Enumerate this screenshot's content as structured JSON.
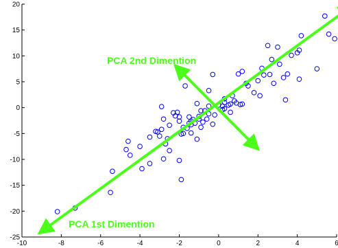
{
  "chart_data": {
    "type": "scatter",
    "title": "",
    "xlabel": "",
    "ylabel": "",
    "xlim": [
      -10,
      6
    ],
    "ylim": [
      -25,
      20
    ],
    "xticks": [
      -10,
      -8,
      -6,
      -4,
      -2,
      0,
      2,
      4,
      6
    ],
    "yticks": [
      -25,
      -20,
      -15,
      -10,
      -5,
      0,
      5,
      10,
      15,
      20
    ],
    "grid": false,
    "marker": "circle-open",
    "series": [
      {
        "name": "",
        "color": "#0000ff",
        "points": [
          [
            -8.2,
            -20.1
          ],
          [
            -7.3,
            -19.4
          ],
          [
            -5.5,
            -16.4
          ],
          [
            -5.4,
            -12.3
          ],
          [
            -3.9,
            -11.8
          ],
          [
            -4.5,
            -9.2
          ],
          [
            -4.7,
            -8.1
          ],
          [
            -4.6,
            -6.5
          ],
          [
            -3.5,
            -5.7
          ],
          [
            -4.0,
            -7.5
          ],
          [
            -3.1,
            -4.7
          ],
          [
            -3.0,
            -5.5
          ],
          [
            -3.2,
            -4.6
          ],
          [
            -2.7,
            -7.0
          ],
          [
            -2.9,
            -4.2
          ],
          [
            -2.5,
            -3.4
          ],
          [
            -2.8,
            -2.2
          ],
          [
            -2.3,
            -1.0
          ],
          [
            -2.2,
            -1.6
          ],
          [
            -1.5,
            -3.0
          ],
          [
            -1.8,
            -3.8
          ],
          [
            -1.2,
            -3.0
          ],
          [
            -1.0,
            -2.2
          ],
          [
            -0.5,
            -1.2
          ],
          [
            -1.6,
            -4.0
          ],
          [
            -1.9,
            -5.1
          ],
          [
            -2.0,
            -2.6
          ],
          [
            -2.0,
            -1.8
          ],
          [
            -2.1,
            -0.9
          ],
          [
            -1.5,
            -1.8
          ],
          [
            -1.4,
            -2.6
          ],
          [
            -1.3,
            -2.3
          ],
          [
            -0.9,
            -3.8
          ],
          [
            -0.8,
            -2.8
          ],
          [
            -0.6,
            -2.2
          ],
          [
            -0.3,
            -3.2
          ],
          [
            -0.2,
            -1.4
          ],
          [
            -1.0,
            -1.7
          ],
          [
            -0.7,
            -0.6
          ],
          [
            -1.4,
            -3.3
          ],
          [
            -1.1,
            -6.1
          ],
          [
            -2.6,
            -6.0
          ],
          [
            -2.9,
            0.2
          ],
          [
            -2.5,
            -8.3
          ],
          [
            -3.5,
            -10.8
          ],
          [
            -2.0,
            -10.2
          ],
          [
            -2.8,
            -9.9
          ],
          [
            -1.4,
            -4.9
          ],
          [
            -1.8,
            -5.0
          ],
          [
            -1.9,
            -13.9
          ],
          [
            -1.7,
            4.2
          ],
          [
            -1.1,
            0.8
          ],
          [
            -0.9,
            -0.6
          ],
          [
            -0.5,
            0.3
          ],
          [
            -0.5,
            3.3
          ],
          [
            -0.3,
            6.4
          ],
          [
            0.0,
            0.5
          ],
          [
            0.2,
            0.3
          ],
          [
            0.3,
            1.7
          ],
          [
            0.3,
            -0.2
          ],
          [
            0.5,
            0.5
          ],
          [
            0.6,
            0.7
          ],
          [
            0.8,
            1.3
          ],
          [
            0.9,
            0.9
          ],
          [
            1.0,
            6.5
          ],
          [
            1.1,
            0.6
          ],
          [
            1.2,
            7.0
          ],
          [
            1.2,
            0.7
          ],
          [
            0.7,
            2.3
          ],
          [
            1.4,
            4.7
          ],
          [
            1.5,
            4.2
          ],
          [
            1.8,
            2.9
          ],
          [
            2.0,
            5.2
          ],
          [
            2.1,
            2.3
          ],
          [
            2.2,
            7.6
          ],
          [
            2.3,
            6.3
          ],
          [
            2.5,
            12.0
          ],
          [
            2.6,
            6.4
          ],
          [
            2.7,
            9.3
          ],
          [
            2.8,
            4.7
          ],
          [
            3.0,
            11.7
          ],
          [
            3.1,
            8.4
          ],
          [
            3.3,
            5.8
          ],
          [
            3.4,
            1.5
          ],
          [
            3.5,
            6.5
          ],
          [
            3.7,
            10.1
          ],
          [
            4.0,
            10.6
          ],
          [
            4.1,
            11.1
          ],
          [
            4.1,
            5.5
          ],
          [
            4.2,
            13.9
          ],
          [
            5.0,
            7.5
          ],
          [
            5.4,
            17.7
          ],
          [
            5.6,
            14.2
          ],
          [
            5.9,
            13.3
          ],
          [
            0.6,
            -0.9
          ],
          [
            0.3,
            1.0
          ],
          [
            0.2,
            -0.4
          ]
        ]
      }
    ],
    "annotations": [
      {
        "text": "PCA 1st Dimention",
        "color": "#4cff1a",
        "arrow": {
          "from": [
            -9.1,
            -24.2
          ],
          "to": [
            6.8,
            19.7
          ],
          "double_headed": true
        }
      },
      {
        "text": "PCA 2nd Dimention",
        "color": "#4cff1a",
        "arrow": {
          "from": [
            -2.2,
            8.1
          ],
          "to": [
            2.0,
            -8.0
          ],
          "double_headed": true
        }
      }
    ]
  }
}
